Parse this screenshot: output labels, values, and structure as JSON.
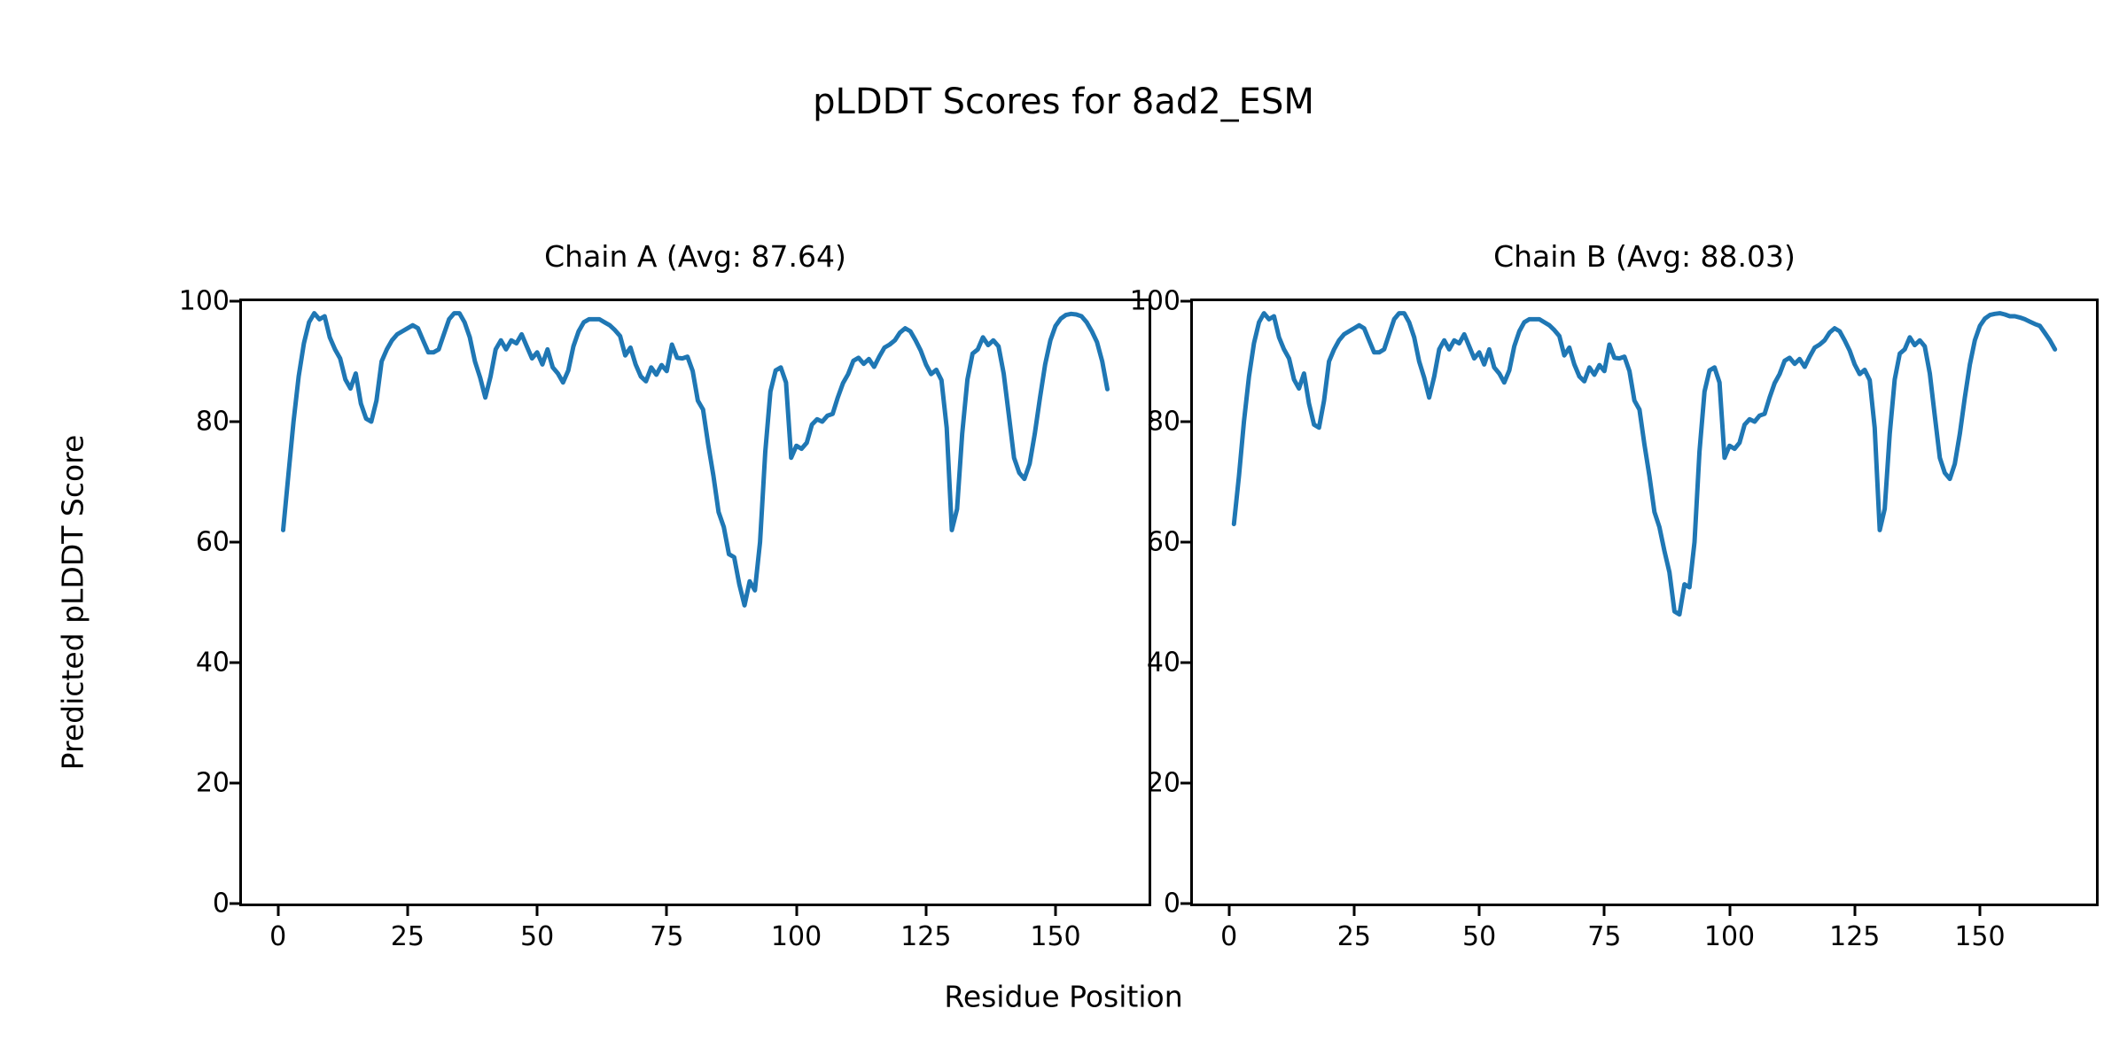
{
  "figure": {
    "background": "#ffffff",
    "text_color": "#000000"
  },
  "chart_data": {
    "type": "line",
    "title": "pLDDT Scores for 8ad2_ESM",
    "xlabel": "Residue Position",
    "ylabel": "Predicted pLDDT Score",
    "line_color": "#1f77b4",
    "grid": false,
    "legend": "none",
    "ylim": [
      0,
      100
    ],
    "x_ticks": [
      0,
      25,
      50,
      75,
      100,
      125,
      150
    ],
    "y_ticks": [
      0,
      20,
      40,
      60,
      80,
      100
    ],
    "subplots": [
      {
        "title": "Chain A (Avg: 87.64)",
        "chain": "A",
        "avg": 87.64,
        "x_start": 1,
        "values": [
          62,
          71,
          80,
          87.5,
          93,
          96.5,
          98,
          97,
          97.5,
          94,
          92,
          90.5,
          87,
          85.5,
          88,
          83,
          80.5,
          80,
          83.5,
          90,
          92,
          93.5,
          94.5,
          95,
          95.5,
          96,
          95.5,
          93.5,
          91.5,
          91.5,
          92,
          94.5,
          97,
          98,
          98,
          96.5,
          94,
          90,
          87.3,
          84,
          87.5,
          92,
          93.5,
          92,
          93.5,
          93,
          94.5,
          92.5,
          90.5,
          91.5,
          89.5,
          92,
          89,
          88,
          86.5,
          88.5,
          92.5,
          95,
          96.5,
          97,
          97,
          97,
          96.5,
          96,
          95.2,
          94.2,
          91,
          92.3,
          89.5,
          87.5,
          86.7,
          89,
          87.8,
          89.4,
          88.4,
          92.8,
          90.6,
          90.5,
          90.8,
          88.4,
          83.5,
          82,
          76.2,
          71,
          65,
          62.5,
          58,
          57.5,
          53,
          49.5,
          53.5,
          52,
          60,
          75,
          85,
          88.5,
          89,
          86.5,
          74,
          76,
          75.5,
          76.5,
          79.5,
          80.4,
          80,
          81,
          81.3,
          84,
          86.4,
          87.9,
          90.1,
          90.6,
          89.6,
          90.4,
          89.1,
          90.8,
          92.3,
          92.8,
          93.5,
          94.8,
          95.5,
          95,
          93.5,
          91.8,
          89.5,
          87.9,
          88.6,
          86.9,
          79,
          62,
          65.5,
          78,
          87,
          91.3,
          92,
          94,
          92.7,
          93.5,
          92.5,
          88,
          81,
          74,
          71.5,
          70.5,
          73,
          78,
          84,
          89.5,
          93.5,
          95.9,
          97.1,
          97.7,
          97.9,
          97.8,
          97.5,
          96.5,
          95,
          93.2,
          90,
          85.4
        ]
      },
      {
        "title": "Chain B (Avg: 88.03)",
        "chain": "B",
        "avg": 88.03,
        "x_start": 1,
        "values": [
          63,
          71,
          80,
          87.5,
          93,
          96.5,
          98,
          97,
          97.5,
          94,
          92,
          90.5,
          87,
          85.5,
          88,
          83,
          79.5,
          79,
          83.5,
          90,
          92,
          93.5,
          94.5,
          95,
          95.5,
          96,
          95.5,
          93.5,
          91.5,
          91.5,
          92,
          94.5,
          97,
          98,
          98,
          96.5,
          94,
          90,
          87.3,
          84,
          87.5,
          92,
          93.5,
          92,
          93.5,
          93,
          94.5,
          92.5,
          90.5,
          91.5,
          89.5,
          92,
          89,
          88,
          86.5,
          88.5,
          92.5,
          95,
          96.5,
          97,
          97,
          97,
          96.5,
          96,
          95.2,
          94.2,
          91,
          92.3,
          89.5,
          87.5,
          86.7,
          89,
          87.8,
          89.4,
          88.4,
          92.8,
          90.6,
          90.5,
          90.8,
          88.4,
          83.5,
          82,
          76.2,
          71,
          65,
          62.5,
          58.5,
          55,
          48.5,
          48,
          53,
          52.5,
          60,
          75,
          85,
          88.5,
          89,
          86.5,
          74,
          76,
          75.5,
          76.5,
          79.5,
          80.4,
          80,
          81,
          81.3,
          84,
          86.4,
          87.9,
          90.1,
          90.6,
          89.6,
          90.4,
          89.1,
          90.8,
          92.3,
          92.8,
          93.5,
          94.8,
          95.5,
          95,
          93.5,
          91.8,
          89.5,
          87.9,
          88.6,
          86.9,
          79,
          62,
          65.5,
          78,
          87,
          91.3,
          92,
          94,
          92.7,
          93.5,
          92.5,
          88,
          81,
          74,
          71.5,
          70.5,
          73,
          78,
          84,
          89.5,
          93.5,
          95.9,
          97.1,
          97.7,
          97.9,
          98,
          97.8,
          97.5,
          97.5,
          97.3,
          97,
          96.6,
          96.2,
          95.9,
          94.7,
          93.5,
          92
        ]
      }
    ]
  }
}
